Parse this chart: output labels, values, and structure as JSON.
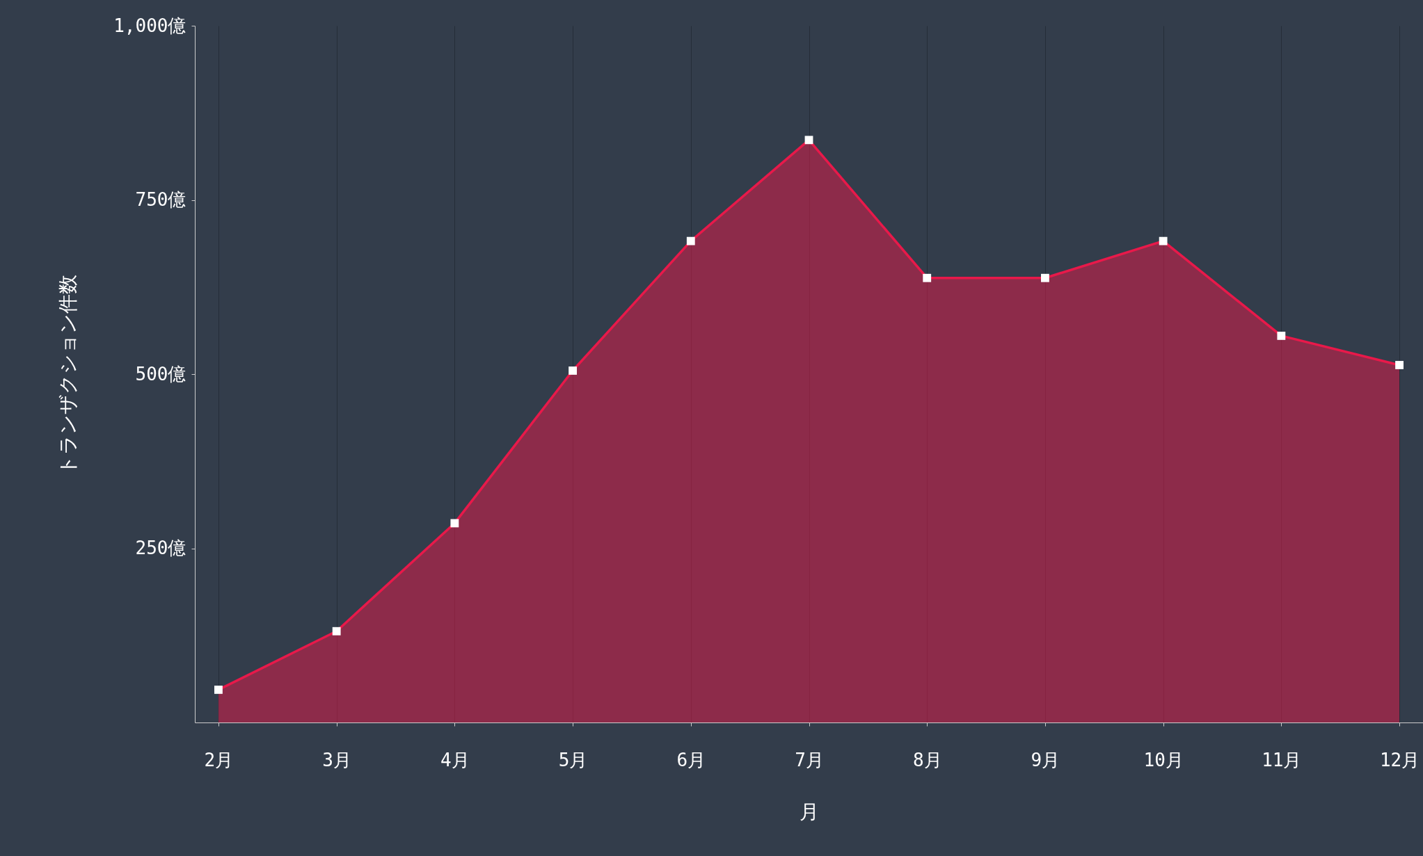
{
  "chart_data": {
    "type": "area",
    "xlabel": "月",
    "ylabel": "トランザクション件数",
    "categories": [
      "2月",
      "3月",
      "4月",
      "5月",
      "6月",
      "7月",
      "8月",
      "9月",
      "10月",
      "11月",
      "12月"
    ],
    "series": [
      {
        "color": "#e8194a",
        "values": [
          47,
          131,
          286,
          505,
          691,
          836,
          638,
          638,
          691,
          555,
          513
        ]
      }
    ],
    "ylim": [
      0,
      1000
    ],
    "yticks": [
      {
        "value": 250,
        "label": "250億"
      },
      {
        "value": 500,
        "label": "500億"
      },
      {
        "value": 750,
        "label": "750億"
      },
      {
        "value": 1000,
        "label": "1,000億"
      }
    ],
    "grid": "x",
    "marker": "square",
    "line_style": "solid"
  }
}
